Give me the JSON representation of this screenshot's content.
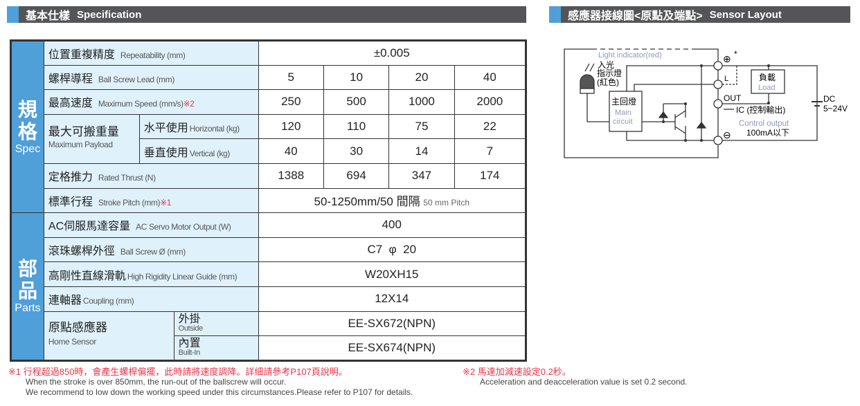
{
  "spec_header": {
    "zh": "基本仕樣",
    "en": "Specification"
  },
  "sensor_header": {
    "zh": "感應器接線圖<原點及端點>",
    "en": "Sensor Layout"
  },
  "categories": {
    "spec_zh1": "規",
    "spec_zh2": "格",
    "spec_en": "Spec",
    "parts_zh1": "部",
    "parts_zh2": "品",
    "parts_en": "Parts"
  },
  "rows": {
    "repeat": {
      "zh": "位置重複精度",
      "en": "Repeatability (mm)",
      "value": "±0.005"
    },
    "lead": {
      "zh": "螺桿導程",
      "en": "Ball Screw Lead (mm)",
      "values": [
        "5",
        "10",
        "20",
        "40"
      ]
    },
    "speed": {
      "zh": "最高速度",
      "en": "Maximum Speed (mm/s)",
      "note": "※2",
      "values": [
        "250",
        "500",
        "1000",
        "2000"
      ]
    },
    "payload": {
      "zh": "最大可搬重量",
      "en": "Maximum Payload",
      "horizontal": {
        "zh": "水平使用",
        "en": "Horizontal (kg)",
        "values": [
          "120",
          "110",
          "75",
          "22"
        ]
      },
      "vertical": {
        "zh": "垂直使用",
        "en": "Vertical (kg)",
        "values": [
          "40",
          "30",
          "14",
          "7"
        ]
      }
    },
    "thrust": {
      "zh": "定格推力",
      "en": "Rated Thrust (N)",
      "values": [
        "1388",
        "694",
        "347",
        "174"
      ]
    },
    "stroke": {
      "zh": "標準行程",
      "en": "Stroke Pitch (mm)",
      "note": "※1",
      "value": "50-1250mm/50 間隔",
      "pitch": "50 mm Pitch"
    },
    "motor": {
      "zh": "AC伺服馬達容量",
      "en": "AC Servo Motor Output (W)",
      "value": "400"
    },
    "screw": {
      "zh": "滾珠螺桿外徑",
      "en": "Ball Screw Ø (mm)",
      "value": "C7  φ  20"
    },
    "guide": {
      "zh": "高剛性直線滑軌",
      "en": "High Rigidity Linear Guide (mm)",
      "value": "W20XH15"
    },
    "coupling": {
      "zh": "連軸器",
      "en": "Coupling (mm)",
      "value": "12X14"
    },
    "home": {
      "zh": "原點感應器",
      "en": "Home Sensor",
      "outside": {
        "zh": "外掛",
        "en": "Outside",
        "value": "EE-SX672(NPN)"
      },
      "builtin": {
        "zh": "內置",
        "en": "Built-In",
        "value": "EE-SX674(NPN)"
      }
    }
  },
  "notes": {
    "n1_zh": "※1 行程超過850時，會產生螺桿偏擺，此時請將速度調降。詳細請參考P107頁說明。",
    "n1_en1": "When the stroke is over 850mm, the run-out of the ballscrew will occur.",
    "n1_en2": "We recommend to low down the working speed under this circumstances.Please refer to P107 for details.",
    "n2_zh": "※2 馬達加減速設定0.2秒。",
    "n2_en": "Acceleration and deacceleration value is set 0.2 second."
  },
  "diagram": {
    "light_en": "Light indicator(red)",
    "light_zh1": "入光",
    "light_zh2": "指示燈",
    "light_zh3": "(紅色)",
    "plus": "⊕",
    "star": "*",
    "L": "L",
    "out": "OUT",
    "minus": "⊖",
    "main_zh": "主回燈",
    "main_en1": "Main",
    "main_en2": "circuit",
    "load_zh": "負載",
    "load_en": "Load",
    "ic": "IC (控制輸出)",
    "control_en": "Control output",
    "current": "100mA以下",
    "dc": "DC",
    "voltage": "5~24V"
  },
  "colors": {
    "accent": "#4f9fd9",
    "header": "#545557",
    "label_bg": "#dff1fa",
    "note_red": "#e8344a"
  }
}
